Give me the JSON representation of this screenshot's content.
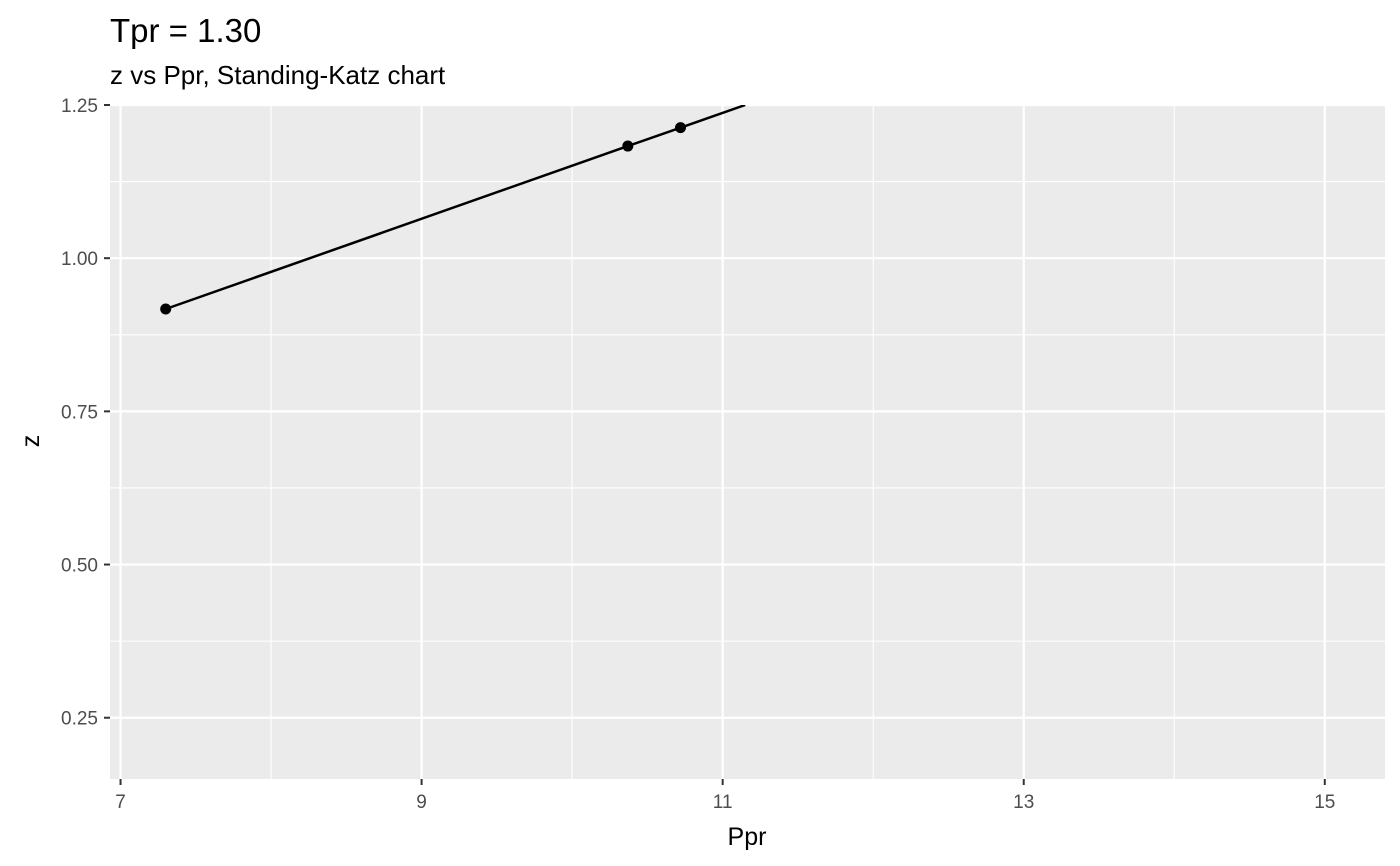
{
  "chart_data": {
    "type": "line",
    "title": "Tpr = 1.30",
    "subtitle": "z vs Ppr, Standing-Katz chart",
    "xlabel": "Ppr",
    "ylabel": "z",
    "xlim": [
      6.93,
      15.4
    ],
    "ylim": [
      0.15,
      1.25
    ],
    "x_ticks": [
      7,
      9,
      11,
      13,
      15
    ],
    "x_tick_labels": [
      "7",
      "9",
      "11",
      "13",
      "15"
    ],
    "y_ticks": [
      0.25,
      0.5,
      0.75,
      1.0,
      1.25
    ],
    "y_tick_labels": [
      "0.25",
      "0.50",
      "0.75",
      "1.00",
      "1.25"
    ],
    "x_minor_ticks": [
      8,
      10,
      12,
      14
    ],
    "y_minor_ticks": [
      0.375,
      0.625,
      0.875,
      1.125
    ],
    "grid": true,
    "legend": "none",
    "colors": {
      "panel": "#ebebeb",
      "grid": "#ffffff",
      "series": "#000000",
      "tick_label": "#4d4d4d",
      "tick_mark": "#333333"
    },
    "points": [
      {
        "x": 7.3,
        "y": 0.917
      },
      {
        "x": 10.37,
        "y": 1.183
      },
      {
        "x": 10.72,
        "y": 1.213
      }
    ],
    "line": [
      {
        "x": 7.3,
        "y": 0.917
      },
      {
        "x": 10.37,
        "y": 1.183
      },
      {
        "x": 10.72,
        "y": 1.213
      },
      {
        "x": 11.15,
        "y": 1.25
      }
    ]
  }
}
